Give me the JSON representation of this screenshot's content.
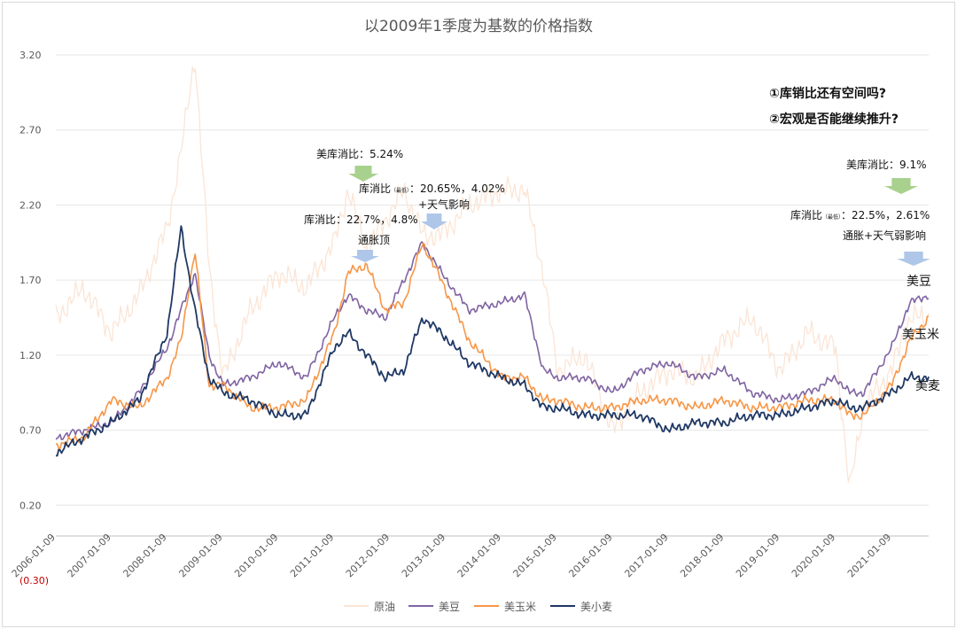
{
  "colors": {
    "crude": "#fbe5d6",
    "soy": "#8064a2",
    "corn": "#f79646",
    "wheat": "#1f3864",
    "grid": "#e6e6e6",
    "arrow_green": "#a9d18e",
    "arrow_blue": "#aec6e8"
  },
  "chart_data": {
    "type": "line",
    "title": "以2009年1季度为基数的价格指数",
    "ylim": [
      -0.3,
      3.2
    ],
    "yticks": [
      "(0.30)",
      "0.20",
      "0.70",
      "1.20",
      "1.70",
      "2.20",
      "2.70",
      "3.20"
    ],
    "ytick_values": [
      -0.3,
      0.2,
      0.7,
      1.2,
      1.7,
      2.2,
      2.7,
      3.2
    ],
    "xlim": [
      "2006-01-09",
      "2021-09-09"
    ],
    "xticks": [
      "2006-01-09",
      "2007-01-09",
      "2008-01-09",
      "2009-01-09",
      "2010-01-09",
      "2011-01-09",
      "2012-01-09",
      "2013-01-09",
      "2014-01-09",
      "2015-01-09",
      "2016-01-09",
      "2017-01-09",
      "2018-01-09",
      "2019-01-09",
      "2020-01-09",
      "2021-01-09"
    ],
    "xtick_labels": [
      "2006-01-09",
      "2007-01-09",
      "2008-01-09",
      "2009-01-09",
      "2010-01-09",
      "2011-01-09",
      "2012-01-09",
      "2013-01-09",
      "2014-01-09",
      "2015-01-09",
      "2016-01-09",
      "2017-01-09",
      "2018-01-09",
      "2019-01-09",
      "2020-01-09",
      "2021-01-09"
    ],
    "x": [
      "2006-01-09",
      "2006-07-09",
      "2007-01-09",
      "2007-07-09",
      "2008-01-09",
      "2008-04-09",
      "2008-07-09",
      "2008-10-09",
      "2009-01-09",
      "2009-07-09",
      "2010-01-09",
      "2010-07-09",
      "2011-01-09",
      "2011-04-09",
      "2011-08-09",
      "2011-12-09",
      "2012-04-09",
      "2012-08-09",
      "2012-12-09",
      "2013-06-09",
      "2014-01-09",
      "2014-06-09",
      "2014-10-09",
      "2015-01-09",
      "2015-07-09",
      "2016-01-09",
      "2016-07-09",
      "2017-01-09",
      "2017-07-09",
      "2018-01-09",
      "2018-07-09",
      "2019-01-09",
      "2019-07-09",
      "2020-01-09",
      "2020-04-09",
      "2020-07-09",
      "2021-01-09",
      "2021-05-09",
      "2021-09-09"
    ],
    "series": [
      {
        "name": "原油",
        "color_key": "crude",
        "values": [
          1.45,
          1.65,
          1.35,
          1.6,
          2.05,
          2.55,
          3.2,
          1.8,
          1.05,
          1.5,
          1.75,
          1.65,
          1.95,
          2.3,
          1.9,
          2.1,
          2.3,
          2.0,
          2.0,
          2.2,
          2.3,
          2.3,
          1.75,
          1.1,
          1.2,
          0.7,
          0.95,
          1.1,
          1.05,
          1.3,
          1.45,
          1.1,
          1.35,
          1.25,
          0.3,
          0.85,
          1.1,
          1.45,
          1.45
        ]
      },
      {
        "name": "美豆",
        "color_key": "soy",
        "values": [
          0.65,
          0.7,
          0.75,
          0.95,
          1.25,
          1.5,
          1.75,
          1.2,
          1.0,
          1.05,
          1.15,
          1.05,
          1.45,
          1.6,
          1.5,
          1.45,
          1.7,
          1.95,
          1.75,
          1.5,
          1.55,
          1.6,
          1.1,
          1.05,
          1.05,
          0.95,
          1.1,
          1.15,
          1.05,
          1.1,
          0.95,
          0.9,
          0.95,
          1.05,
          0.95,
          0.95,
          1.25,
          1.55,
          1.6
        ]
      },
      {
        "name": "美玉米",
        "color_key": "corn",
        "values": [
          0.6,
          0.65,
          0.9,
          0.85,
          1.05,
          1.3,
          1.9,
          1.0,
          1.0,
          0.85,
          0.85,
          0.9,
          1.35,
          1.75,
          1.8,
          1.5,
          1.55,
          1.95,
          1.7,
          1.3,
          1.05,
          1.05,
          0.9,
          0.9,
          0.85,
          0.85,
          0.9,
          0.9,
          0.85,
          0.9,
          0.85,
          0.85,
          0.9,
          0.9,
          0.8,
          0.8,
          1.0,
          1.3,
          1.45
        ]
      },
      {
        "name": "美小麦",
        "color_key": "wheat",
        "values": [
          0.55,
          0.65,
          0.75,
          0.9,
          1.35,
          2.05,
          1.5,
          1.05,
          0.95,
          0.9,
          0.8,
          0.8,
          1.25,
          1.35,
          1.2,
          1.05,
          1.1,
          1.45,
          1.35,
          1.15,
          1.05,
          1.0,
          0.85,
          0.85,
          0.8,
          0.8,
          0.8,
          0.7,
          0.75,
          0.75,
          0.8,
          0.8,
          0.85,
          0.9,
          0.85,
          0.85,
          0.95,
          1.05,
          1.05
        ]
      }
    ],
    "end_labels": [
      "美豆",
      "美玉米",
      "美麦"
    ],
    "legend": [
      "原油",
      "美豆",
      "美玉米",
      "美小麦"
    ],
    "legend_position": "bottom"
  },
  "annotations": {
    "q1": "①库销比还有空间吗?",
    "q2": "②宏观是否能继续推升?",
    "a1": "美库消比：5.24%",
    "a2_pre": "库消比",
    "a2_small": "（最低）",
    "a2_post": "：20.65%，4.02%",
    "a3": "+天气影响",
    "a4": "库消比：22.7%，4.8%",
    "a5": "通胀顶",
    "a6": "美库消比：9.1%",
    "a7_pre": "库消比",
    "a7_small": "（最低）",
    "a7_post": "：22.5%，2.61%",
    "a8": "通胀+天气弱影响"
  }
}
